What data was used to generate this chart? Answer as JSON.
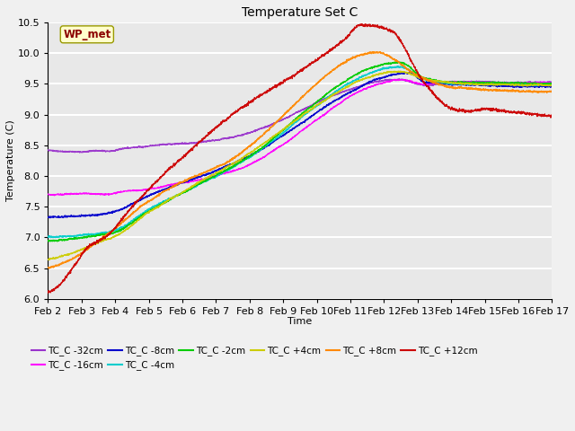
{
  "title": "Temperature Set C",
  "xlabel": "Time",
  "ylabel": "Temperature (C)",
  "ylim": [
    6.0,
    10.5
  ],
  "plot_bg": "#e8e8e8",
  "fig_bg": "#f0f0f0",
  "grid_color": "#ffffff",
  "wp_met_label": "WP_met",
  "wp_met_color": "#8b0000",
  "wp_met_bg": "#ffffcc",
  "wp_met_edge": "#999900",
  "series": [
    {
      "label": "TC_C -32cm",
      "color": "#9933cc",
      "keypoints_x": [
        2.0,
        3.8,
        4.2,
        7.0,
        12.5,
        13.2,
        14.0,
        17.0
      ],
      "keypoints_y": [
        8.4,
        8.38,
        8.42,
        8.55,
        9.6,
        9.5,
        9.55,
        9.55
      ],
      "noise": 0.012,
      "flat_end": 4.0
    },
    {
      "label": "TC_C -16cm",
      "color": "#ff00ff",
      "keypoints_x": [
        2.0,
        3.8,
        4.2,
        5.0,
        7.5,
        12.5,
        13.2,
        14.0,
        17.0
      ],
      "keypoints_y": [
        7.7,
        7.7,
        7.75,
        7.8,
        8.1,
        9.55,
        9.48,
        9.5,
        9.5
      ],
      "noise": 0.012,
      "flat_end": 4.0
    },
    {
      "label": "TC_C -8cm",
      "color": "#0000cc",
      "keypoints_x": [
        2.0,
        3.5,
        4.0,
        5.0,
        7.5,
        12.8,
        13.2,
        14.0,
        17.0
      ],
      "keypoints_y": [
        7.35,
        7.4,
        7.45,
        7.7,
        8.2,
        9.65,
        9.5,
        9.48,
        9.45
      ],
      "noise": 0.015,
      "flat_end": 3.8
    },
    {
      "label": "TC_C -4cm",
      "color": "#00cccc",
      "keypoints_x": [
        2.0,
        3.0,
        3.5,
        4.0,
        5.0,
        7.5,
        12.5,
        13.2,
        14.0,
        17.0
      ],
      "keypoints_y": [
        7.05,
        7.08,
        7.1,
        7.15,
        7.5,
        8.15,
        9.75,
        9.55,
        9.48,
        9.45
      ],
      "noise": 0.015,
      "flat_end": 3.0
    },
    {
      "label": "TC_C -2cm",
      "color": "#00cc00",
      "keypoints_x": [
        2.0,
        3.0,
        3.5,
        4.0,
        5.0,
        7.5,
        12.5,
        13.2,
        14.0,
        17.0
      ],
      "keypoints_y": [
        6.95,
        7.0,
        7.05,
        7.1,
        7.45,
        8.15,
        9.85,
        9.6,
        9.52,
        9.5
      ],
      "noise": 0.015,
      "flat_end": 3.0
    },
    {
      "label": "TC_C +4cm",
      "color": "#cccc00",
      "keypoints_x": [
        2.0,
        2.5,
        3.0,
        3.5,
        4.0,
        5.0,
        7.5,
        12.5,
        13.2,
        14.0,
        17.0
      ],
      "keypoints_y": [
        6.65,
        6.7,
        6.8,
        6.9,
        7.0,
        7.4,
        8.2,
        9.7,
        9.58,
        9.52,
        9.5
      ],
      "noise": 0.015,
      "flat_end": 2.5
    },
    {
      "label": "TC_C +8cm",
      "color": "#ff8800",
      "keypoints_x": [
        2.0,
        2.5,
        3.0,
        3.5,
        4.0,
        5.0,
        7.5,
        11.8,
        13.2,
        14.0,
        17.0
      ],
      "keypoints_y": [
        6.5,
        6.6,
        6.75,
        6.95,
        7.15,
        7.6,
        8.3,
        10.0,
        9.6,
        9.45,
        9.35
      ],
      "noise": 0.018,
      "flat_end": 2.5
    },
    {
      "label": "TC_C +12cm",
      "color": "#cc0000",
      "keypoints_x": [
        2.0,
        2.3,
        2.8,
        3.2,
        3.7,
        4.5,
        6.0,
        7.5,
        10.8,
        11.3,
        12.2,
        13.2,
        14.0,
        14.5,
        15.0,
        16.0,
        17.0
      ],
      "keypoints_y": [
        6.1,
        6.2,
        6.55,
        6.85,
        7.0,
        7.5,
        8.3,
        9.0,
        10.2,
        10.45,
        10.35,
        9.5,
        9.1,
        9.05,
        9.1,
        9.05,
        9.0
      ],
      "noise": 0.025,
      "flat_end": 2.0
    }
  ],
  "x_ticks": [
    2,
    3,
    4,
    5,
    6,
    7,
    8,
    9,
    10,
    11,
    12,
    13,
    14,
    15,
    16,
    17
  ],
  "x_tick_labels": [
    "Feb 2",
    "Feb 3",
    "Feb 4",
    "Feb 5",
    "Feb 6",
    "Feb 7",
    "Feb 8",
    "Feb 9",
    "Feb 10",
    "Feb 11",
    "Feb 12",
    "Feb 13",
    "Feb 14",
    "Feb 15",
    "Feb 16",
    "Feb 17"
  ],
  "y_ticks": [
    6.0,
    6.5,
    7.0,
    7.5,
    8.0,
    8.5,
    9.0,
    9.5,
    10.0,
    10.5
  ]
}
